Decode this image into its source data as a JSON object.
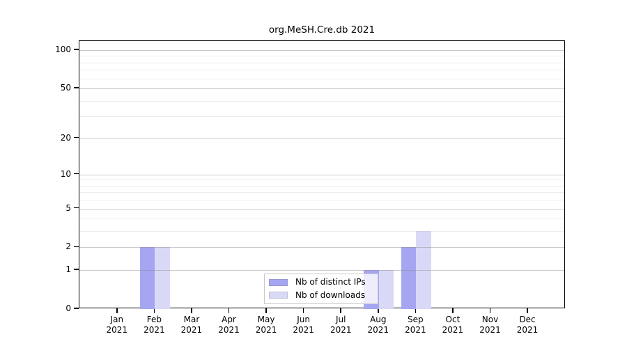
{
  "chart_data": {
    "type": "bar",
    "title": "org.MeSH.Cre.db 2021",
    "categories": [
      "Jan 2021",
      "Feb 2021",
      "Mar 2021",
      "Apr 2021",
      "May 2021",
      "Jun 2021",
      "Jul 2021",
      "Aug 2021",
      "Sep 2021",
      "Oct 2021",
      "Nov 2021",
      "Dec 2021"
    ],
    "series": [
      {
        "name": "Nb of distinct IPs",
        "color": "#a5a5f2",
        "values": [
          0,
          2,
          0,
          0,
          0,
          0,
          0,
          1,
          2,
          0,
          0,
          0
        ]
      },
      {
        "name": "Nb of downloads",
        "color": "#d9d9f7",
        "values": [
          0,
          2,
          0,
          0,
          0,
          0,
          0,
          1,
          3,
          0,
          0,
          0
        ]
      }
    ],
    "xlabel": "",
    "ylabel": "",
    "yscale": "log10(value+1)",
    "yticks_major": [
      0,
      1,
      2,
      5,
      10,
      20,
      50,
      100
    ],
    "yticks_minor": [
      3,
      4,
      6,
      7,
      8,
      9,
      30,
      40,
      60,
      70,
      80,
      90
    ],
    "ylim": [
      0,
      117
    ],
    "grid": "horizontal",
    "legend_position": "inside-bottom-center",
    "bar_layout": "paired-adjacent"
  }
}
